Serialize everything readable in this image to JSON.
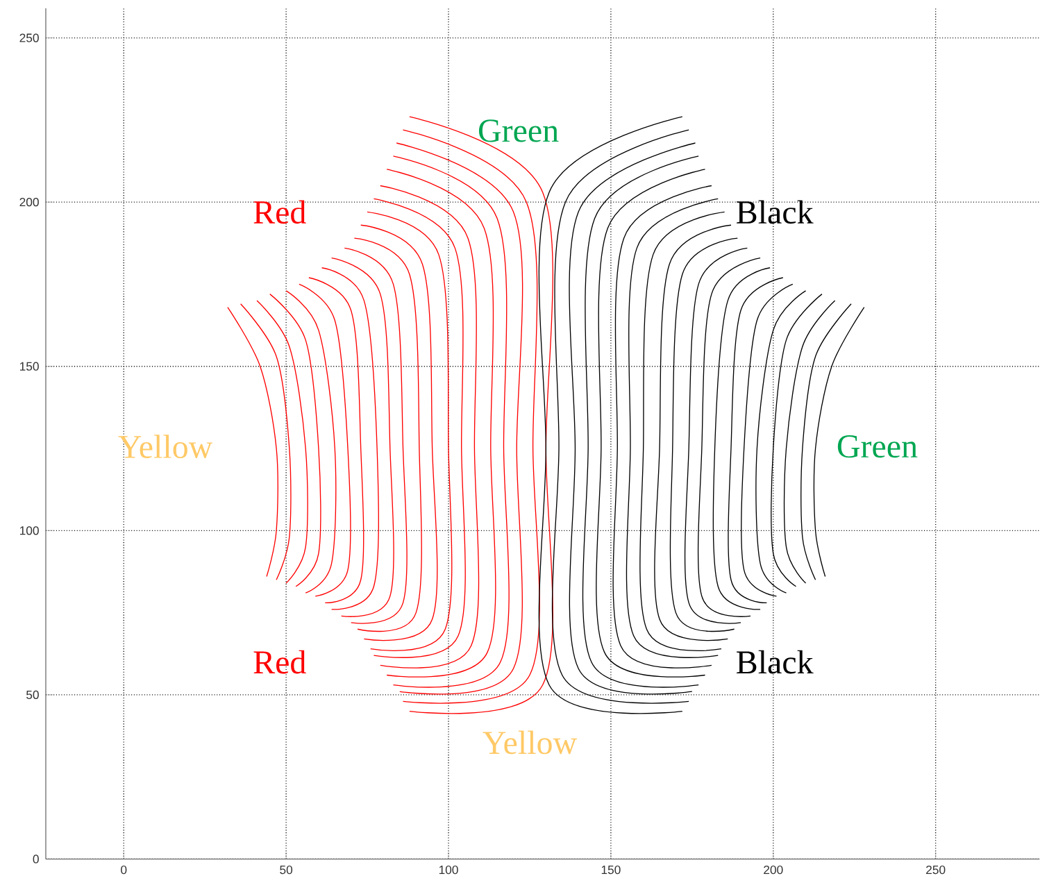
{
  "chart_data": {
    "type": "line",
    "xlim": [
      -24,
      282
    ],
    "ylim": [
      0,
      259
    ],
    "xticks": [
      0,
      50,
      100,
      150,
      200,
      250
    ],
    "yticks": [
      0,
      50,
      100,
      150,
      200,
      250
    ],
    "grid": true,
    "marker": "none",
    "line_style": "solid",
    "annotations": [
      "Green",
      "Red",
      "Black",
      "Yellow",
      "Green",
      "Red",
      "Black",
      "Yellow"
    ],
    "series": [
      {
        "color": "#ff0000",
        "x": [
          88,
          129,
          130,
          129,
          88
        ],
        "values": [
          226,
          203,
          125,
          53,
          45
        ]
      },
      {
        "color": "#ff0000",
        "x": [
          86,
          124,
          126,
          125,
          86
        ],
        "values": [
          222,
          200,
          125,
          56,
          48
        ]
      },
      {
        "color": "#ff0000",
        "x": [
          84,
          120,
          121,
          120,
          85
        ],
        "values": [
          218,
          197,
          125,
          58,
          51
        ]
      },
      {
        "color": "#ff0000",
        "x": [
          83,
          115,
          117,
          116,
          83
        ],
        "values": [
          214,
          195,
          125,
          60,
          53
        ]
      },
      {
        "color": "#ff0000",
        "x": [
          81,
          111,
          113,
          112,
          81
        ],
        "values": [
          210,
          192,
          125,
          63,
          56
        ]
      },
      {
        "color": "#ff0000",
        "x": [
          79,
          106,
          108,
          107,
          79
        ],
        "values": [
          205,
          189,
          125,
          65,
          59
        ]
      },
      {
        "color": "#ff0000",
        "x": [
          77,
          102,
          104,
          103,
          77
        ],
        "values": [
          201,
          186,
          125,
          68,
          62
        ]
      },
      {
        "color": "#ff0000",
        "x": [
          75,
          97,
          100,
          99,
          76
        ],
        "values": [
          197,
          184,
          125,
          70,
          64
        ]
      },
      {
        "color": "#ff0000",
        "x": [
          73,
          92,
          95,
          95,
          74
        ],
        "values": [
          193,
          181,
          125,
          73,
          67
        ]
      },
      {
        "color": "#ff0000",
        "x": [
          71,
          88,
          91,
          90,
          72
        ],
        "values": [
          189,
          178,
          125,
          75,
          70
        ]
      },
      {
        "color": "#ff0000",
        "x": [
          68,
          83,
          86,
          86,
          70
        ],
        "values": [
          186,
          175,
          125,
          78,
          72
        ]
      },
      {
        "color": "#ff0000",
        "x": [
          64,
          79,
          82,
          82,
          67
        ],
        "values": [
          183,
          172,
          125,
          80,
          74
        ]
      },
      {
        "color": "#ff0000",
        "x": [
          61,
          74,
          78,
          77,
          64
        ],
        "values": [
          180,
          170,
          125,
          83,
          76
        ]
      },
      {
        "color": "#ff0000",
        "x": [
          57,
          70,
          73,
          73,
          62
        ],
        "values": [
          177,
          167,
          125,
          85,
          78
        ]
      },
      {
        "color": "#ff0000",
        "x": [
          54,
          65,
          69,
          69,
          59
        ],
        "values": [
          175,
          164,
          125,
          88,
          80
        ]
      },
      {
        "color": "#ff0000",
        "x": [
          50,
          60,
          65,
          64,
          56
        ],
        "values": [
          173,
          161,
          125,
          90,
          81
        ]
      },
      {
        "color": "#ff0000",
        "x": [
          45,
          56,
          60,
          60,
          53
        ],
        "values": [
          172,
          158,
          125,
          93,
          83
        ]
      },
      {
        "color": "#ff0000",
        "x": [
          41,
          51,
          56,
          56,
          50
        ],
        "values": [
          170,
          156,
          125,
          95,
          84
        ]
      },
      {
        "color": "#ff0000",
        "x": [
          36,
          47,
          51,
          51,
          47
        ],
        "values": [
          169,
          153,
          125,
          98,
          85
        ]
      },
      {
        "color": "#ff0000",
        "x": [
          32,
          42,
          47,
          47,
          44
        ],
        "values": [
          168,
          150,
          125,
          100,
          86
        ]
      },
      {
        "color": "#000000",
        "x": [
          172,
          131,
          130,
          131,
          172
        ],
        "values": [
          226,
          203,
          125,
          53,
          45
        ]
      },
      {
        "color": "#000000",
        "x": [
          174,
          136,
          134,
          135,
          174
        ],
        "values": [
          222,
          200,
          125,
          56,
          48
        ]
      },
      {
        "color": "#000000",
        "x": [
          176,
          140,
          139,
          140,
          175
        ],
        "values": [
          218,
          197,
          125,
          58,
          51
        ]
      },
      {
        "color": "#000000",
        "x": [
          177,
          145,
          143,
          144,
          177
        ],
        "values": [
          214,
          195,
          125,
          60,
          53
        ]
      },
      {
        "color": "#000000",
        "x": [
          179,
          149,
          147,
          148,
          179
        ],
        "values": [
          210,
          192,
          125,
          63,
          56
        ]
      },
      {
        "color": "#000000",
        "x": [
          181,
          154,
          152,
          153,
          181
        ],
        "values": [
          205,
          189,
          125,
          65,
          59
        ]
      },
      {
        "color": "#000000",
        "x": [
          183,
          158,
          156,
          157,
          183
        ],
        "values": [
          201,
          186,
          125,
          68,
          62
        ]
      },
      {
        "color": "#000000",
        "x": [
          185,
          163,
          160,
          161,
          184
        ],
        "values": [
          197,
          184,
          125,
          70,
          64
        ]
      },
      {
        "color": "#000000",
        "x": [
          187,
          168,
          165,
          165,
          186
        ],
        "values": [
          193,
          181,
          125,
          73,
          67
        ]
      },
      {
        "color": "#000000",
        "x": [
          189,
          172,
          169,
          170,
          188
        ],
        "values": [
          189,
          178,
          125,
          75,
          70
        ]
      },
      {
        "color": "#000000",
        "x": [
          192,
          177,
          174,
          174,
          190
        ],
        "values": [
          186,
          175,
          125,
          78,
          72
        ]
      },
      {
        "color": "#000000",
        "x": [
          196,
          181,
          178,
          178,
          193
        ],
        "values": [
          183,
          172,
          125,
          80,
          74
        ]
      },
      {
        "color": "#000000",
        "x": [
          199,
          186,
          182,
          183,
          196
        ],
        "values": [
          180,
          170,
          125,
          83,
          76
        ]
      },
      {
        "color": "#000000",
        "x": [
          203,
          190,
          187,
          187,
          198
        ],
        "values": [
          177,
          167,
          125,
          85,
          78
        ]
      },
      {
        "color": "#000000",
        "x": [
          206,
          195,
          191,
          191,
          201
        ],
        "values": [
          175,
          164,
          125,
          88,
          80
        ]
      },
      {
        "color": "#000000",
        "x": [
          210,
          200,
          195,
          196,
          204
        ],
        "values": [
          173,
          161,
          125,
          90,
          81
        ]
      },
      {
        "color": "#000000",
        "x": [
          215,
          204,
          200,
          200,
          207
        ],
        "values": [
          172,
          158,
          125,
          93,
          83
        ]
      },
      {
        "color": "#000000",
        "x": [
          219,
          209,
          204,
          204,
          210
        ],
        "values": [
          170,
          156,
          125,
          95,
          84
        ]
      },
      {
        "color": "#000000",
        "x": [
          224,
          213,
          209,
          209,
          213
        ],
        "values": [
          169,
          153,
          125,
          98,
          85
        ]
      },
      {
        "color": "#000000",
        "x": [
          228,
          218,
          213,
          213,
          216
        ],
        "values": [
          168,
          150,
          125,
          100,
          86
        ]
      }
    ]
  }
}
